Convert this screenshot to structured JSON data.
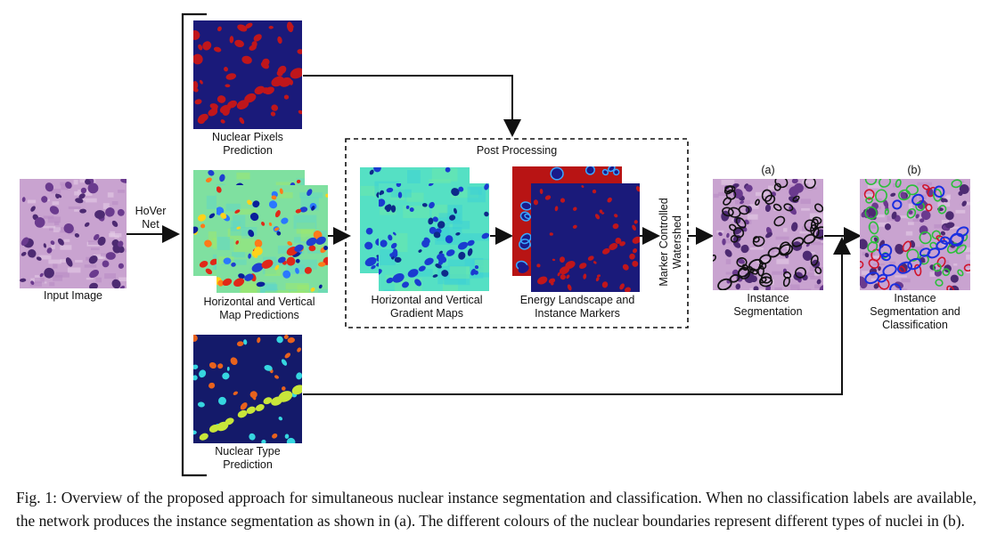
{
  "labels": {
    "input_image": "Input Image",
    "hover_net_1": "HoVer",
    "hover_net_2": "Net",
    "np_1": "Nuclear Pixels",
    "np_2": "Prediction",
    "hv_1": "Horizontal and Vertical",
    "hv_2": "Map Predictions",
    "nt_1": "Nuclear Type",
    "nt_2": "Prediction",
    "post_processing": "Post Processing",
    "grad_1": "Horizontal and Vertical",
    "grad_2": "Gradient Maps",
    "energy_1": "Energy Landscape and",
    "energy_2": "Instance Markers",
    "watershed_1": "Marker Controlled",
    "watershed_2": "Watershed",
    "tag_a": "(a)",
    "tag_b": "(b)",
    "inst_1": "Instance",
    "inst_2": "Segmentation",
    "cls_1": "Instance",
    "cls_2": "Segmentation and",
    "cls_3": "Classification"
  },
  "caption": "Fig. 1: Overview of the proposed approach for simultaneous nuclear instance segmentation and classification. When no classification labels are available, the network produces the instance segmentation as shown in (a). The different colours of the nuclear boundaries represent different types of nuclei in (b).",
  "colors": {
    "arrow": "#111111",
    "histology_bg": "#c9a3d0",
    "nucleus_purple": "#6a3a8e",
    "mask_bg": "#1a1a7a",
    "mask_nucleus": "#c0161b",
    "type_orange": "#e8621d",
    "type_yellowgreen": "#c8e63a",
    "type_cyan": "#36d6e0",
    "hv_bg": "#7fe0a0",
    "contour_black": "#111111",
    "contour_green": "#2bbf3a",
    "contour_red": "#d0142c",
    "contour_blue": "#1a2fe0"
  }
}
